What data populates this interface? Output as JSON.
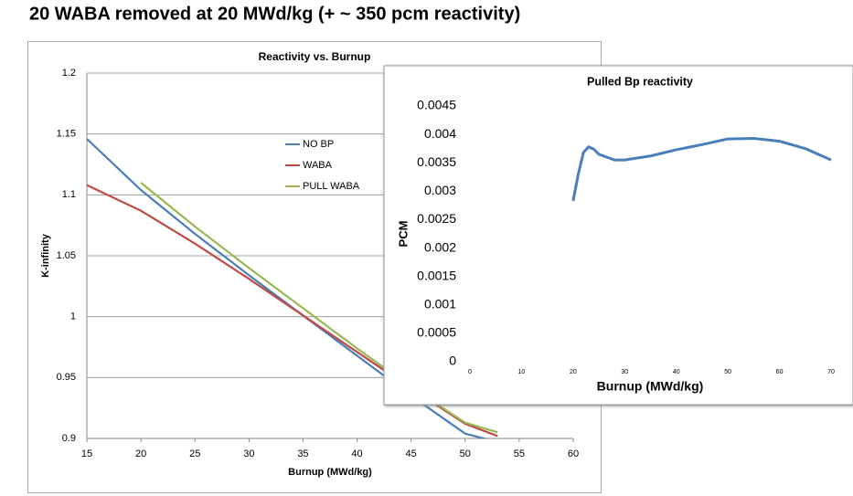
{
  "title": "20 WABA removed at 20 MWd/kg (+  ~ 350 pcm reactivity)",
  "chart_data": [
    {
      "type": "line",
      "title": "Reactivity vs. Burnup",
      "x_label": "Burnup (MWd/kg)",
      "y_label": "K-infinity",
      "x": [
        15,
        20,
        25,
        30,
        35,
        40,
        45,
        50,
        53
      ],
      "series": [
        {
          "name": "NO BP",
          "color": "#4a7ebb",
          "values": [
            1.146,
            1.104,
            1.068,
            1.034,
            1.001,
            0.968,
            0.935,
            0.904,
            0.897
          ]
        },
        {
          "name": "WABA",
          "color": "#be4b48",
          "values": [
            1.108,
            1.087,
            1.06,
            1.031,
            1.001,
            0.971,
            0.941,
            0.912,
            0.902
          ]
        },
        {
          "name": "PULL WABA",
          "color": "#98b954",
          "values": [
            null,
            1.11,
            1.074,
            1.04,
            1.007,
            0.974,
            0.942,
            0.913,
            0.905
          ]
        }
      ],
      "xlim": [
        15,
        60
      ],
      "xticks": [
        15,
        20,
        25,
        30,
        35,
        40,
        45,
        50,
        55,
        60
      ],
      "ylim": [
        0.9,
        1.2
      ],
      "yticks": [
        0.9,
        0.95,
        1,
        1.05,
        1.1,
        1.15,
        1.2
      ],
      "grid": true,
      "legend": "inside"
    },
    {
      "type": "line",
      "title": "Pulled Bp reactivity",
      "x_label": "Burnup (MWd/kg)",
      "y_label": "PCM",
      "x": [
        20,
        21,
        22,
        23,
        24,
        25,
        28,
        30,
        35,
        40,
        45,
        50,
        55,
        60,
        65,
        70
      ],
      "series": [
        {
          "color": "#4a7ebb",
          "values": [
            0.00283,
            0.0033,
            0.00368,
            0.00378,
            0.00374,
            0.00365,
            0.00355,
            0.00355,
            0.00362,
            0.00373,
            0.00382,
            0.00392,
            0.00393,
            0.00388,
            0.00375,
            0.00355
          ]
        }
      ],
      "xlim": [
        0,
        70
      ],
      "xticks": [
        0,
        10,
        20,
        30,
        40,
        50,
        60,
        70
      ],
      "ylim": [
        0,
        0.0045
      ],
      "yticks": [
        0,
        0.0005,
        0.001,
        0.0015,
        0.002,
        0.0025,
        0.003,
        0.0035,
        0.004,
        0.0045
      ],
      "grid": false
    }
  ]
}
